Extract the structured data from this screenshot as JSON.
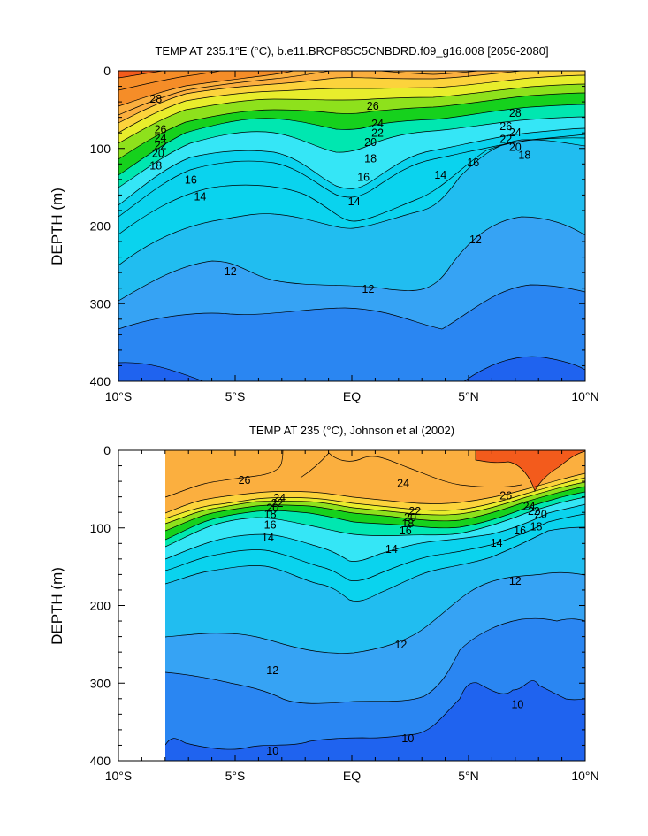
{
  "chart_data": [
    {
      "type": "contour",
      "title": "TEMP AT 235.1°E (°C), b.e11.BRCP85C5CNBDRD.f09_g16.008 [2056-2080]",
      "ylabel": "DEPTH (m)",
      "xlabel": "",
      "x_ticks": [
        "10°S",
        "5°S",
        "EQ",
        "5°N",
        "10°N"
      ],
      "y_ticks": [
        "0",
        "100",
        "200",
        "300",
        "400"
      ],
      "xlim": [
        -10,
        10
      ],
      "ylim": [
        400,
        0
      ],
      "y_inverted": true,
      "contour_interval": 1,
      "contour_labels": [
        {
          "value": "28",
          "lat": -8.4,
          "depth": 36
        },
        {
          "value": "26",
          "lat": -8.2,
          "depth": 75
        },
        {
          "value": "24",
          "lat": -8.2,
          "depth": 86
        },
        {
          "value": "22",
          "lat": -8.2,
          "depth": 96
        },
        {
          "value": "20",
          "lat": -8.3,
          "depth": 106
        },
        {
          "value": "18",
          "lat": -8.4,
          "depth": 122
        },
        {
          "value": "16",
          "lat": -6.9,
          "depth": 140
        },
        {
          "value": "14",
          "lat": -6.5,
          "depth": 162
        },
        {
          "value": "12",
          "lat": -5.2,
          "depth": 258
        },
        {
          "value": "26",
          "lat": 0.9,
          "depth": 45
        },
        {
          "value": "24",
          "lat": 1.1,
          "depth": 68
        },
        {
          "value": "22",
          "lat": 1.1,
          "depth": 80
        },
        {
          "value": "20",
          "lat": 0.8,
          "depth": 92
        },
        {
          "value": "18",
          "lat": 0.8,
          "depth": 113
        },
        {
          "value": "16",
          "lat": 0.5,
          "depth": 137
        },
        {
          "value": "14",
          "lat": 0.1,
          "depth": 168
        },
        {
          "value": "12",
          "lat": 0.7,
          "depth": 281
        },
        {
          "value": "28",
          "lat": 7.0,
          "depth": 54
        },
        {
          "value": "26",
          "lat": 6.6,
          "depth": 71
        },
        {
          "value": "24",
          "lat": 7.0,
          "depth": 79
        },
        {
          "value": "22",
          "lat": 6.6,
          "depth": 88
        },
        {
          "value": "20",
          "lat": 7.0,
          "depth": 98
        },
        {
          "value": "18",
          "lat": 7.4,
          "depth": 108
        },
        {
          "value": "16",
          "lat": 5.2,
          "depth": 118
        },
        {
          "value": "14",
          "lat": 3.8,
          "depth": 134
        },
        {
          "value": "12",
          "lat": 5.3,
          "depth": 217
        }
      ]
    },
    {
      "type": "contour",
      "title": "TEMP AT 235 (°C), Johnson et al (2002)",
      "ylabel": "DEPTH (m)",
      "xlabel": "",
      "x_ticks": [
        "10°S",
        "5°S",
        "EQ",
        "5°N",
        "10°N"
      ],
      "y_ticks": [
        "0",
        "100",
        "200",
        "300",
        "400"
      ],
      "xlim": [
        -10,
        10
      ],
      "ylim": [
        400,
        0
      ],
      "y_inverted": true,
      "data_coverage_lat": [
        -8,
        10
      ],
      "contour_interval": 1,
      "contour_labels": [
        {
          "value": "26",
          "lat": -4.6,
          "depth": 38
        },
        {
          "value": "24",
          "lat": -3.1,
          "depth": 61
        },
        {
          "value": "22",
          "lat": -3.2,
          "depth": 68
        },
        {
          "value": "20",
          "lat": -3.4,
          "depth": 74
        },
        {
          "value": "18",
          "lat": -3.5,
          "depth": 82
        },
        {
          "value": "16",
          "lat": -3.5,
          "depth": 96
        },
        {
          "value": "14",
          "lat": -3.6,
          "depth": 112
        },
        {
          "value": "12",
          "lat": -3.4,
          "depth": 283
        },
        {
          "value": "10",
          "lat": -3.4,
          "depth": 387
        },
        {
          "value": "24",
          "lat": 2.2,
          "depth": 42
        },
        {
          "value": "22",
          "lat": 2.7,
          "depth": 78
        },
        {
          "value": "20",
          "lat": 2.5,
          "depth": 86
        },
        {
          "value": "18",
          "lat": 2.4,
          "depth": 94
        },
        {
          "value": "16",
          "lat": 2.3,
          "depth": 103
        },
        {
          "value": "14",
          "lat": 1.7,
          "depth": 127
        },
        {
          "value": "12",
          "lat": 2.1,
          "depth": 250
        },
        {
          "value": "10",
          "lat": 2.4,
          "depth": 371
        },
        {
          "value": "26",
          "lat": 6.6,
          "depth": 58
        },
        {
          "value": "24",
          "lat": 7.6,
          "depth": 72
        },
        {
          "value": "22",
          "lat": 7.8,
          "depth": 78
        },
        {
          "value": "20",
          "lat": 8.1,
          "depth": 82
        },
        {
          "value": "18",
          "lat": 7.9,
          "depth": 98
        },
        {
          "value": "16",
          "lat": 7.2,
          "depth": 103
        },
        {
          "value": "14",
          "lat": 6.2,
          "depth": 119
        },
        {
          "value": "12",
          "lat": 7.0,
          "depth": 168
        },
        {
          "value": "10",
          "lat": 7.1,
          "depth": 327
        }
      ]
    }
  ]
}
